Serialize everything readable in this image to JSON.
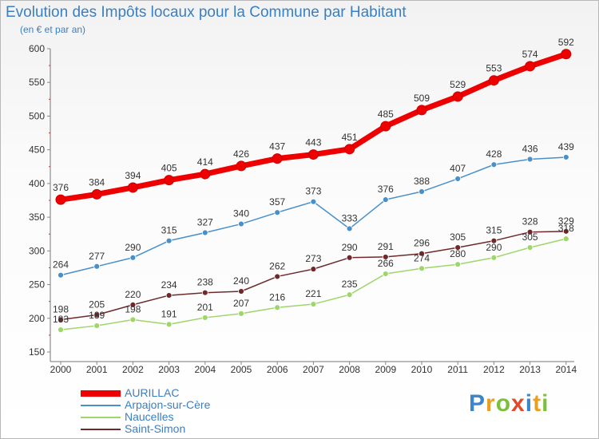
{
  "title": "Evolution des Impôts locaux pour la Commune par Habitant",
  "subtitle": "(en € et par an)",
  "logo": "Proxiti",
  "chart_data": {
    "type": "line",
    "x": [
      "2000",
      "2001",
      "2002",
      "2003",
      "2004",
      "2005",
      "2006",
      "2007",
      "2008",
      "2009",
      "2010",
      "2011",
      "2012",
      "2013",
      "2014"
    ],
    "ylim": [
      150,
      600
    ],
    "yticks": [
      150,
      200,
      250,
      300,
      350,
      400,
      450,
      500,
      550,
      600
    ],
    "grid": false,
    "legend": "bottom-left",
    "series": [
      {
        "name": "AURILLAC",
        "color": "#ee0000",
        "values": [
          376,
          384,
          394,
          405,
          414,
          426,
          437,
          443,
          451,
          485,
          509,
          529,
          553,
          574,
          592
        ]
      },
      {
        "name": "Arpajon-sur-Cère",
        "color": "#4a90c8",
        "values": [
          264,
          277,
          290,
          315,
          327,
          340,
          357,
          373,
          333,
          376,
          388,
          407,
          428,
          436,
          439
        ]
      },
      {
        "name": "Naucelles",
        "color": "#9ed66a",
        "values": [
          183,
          189,
          198,
          191,
          201,
          207,
          216,
          221,
          235,
          266,
          274,
          280,
          290,
          305,
          318
        ]
      },
      {
        "name": "Saint-Simon",
        "color": "#6e2a2a",
        "values": [
          198,
          205,
          220,
          234,
          238,
          240,
          262,
          273,
          290,
          291,
          296,
          305,
          315,
          328,
          329
        ]
      }
    ]
  }
}
